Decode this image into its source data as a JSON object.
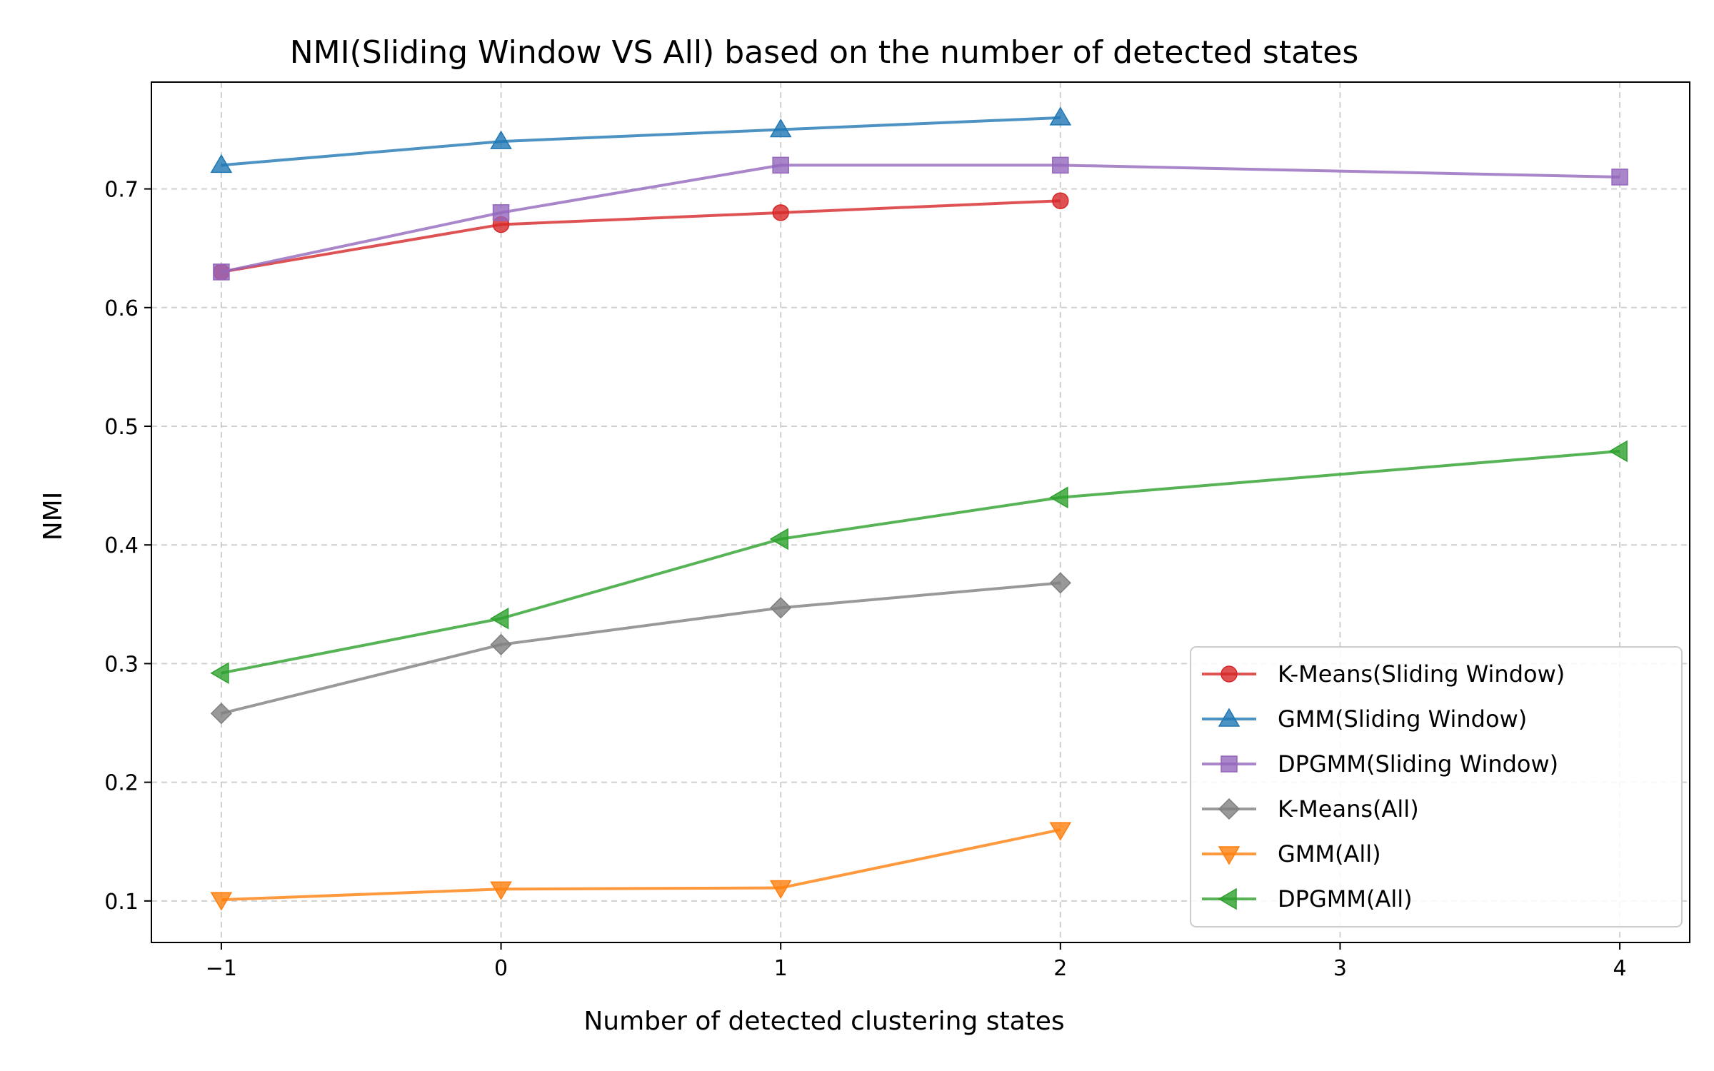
{
  "chart_data": {
    "type": "line",
    "title": "NMI(Sliding Window VS All) based on the number of detected states",
    "xlabel": "Number of detected clustering states",
    "ylabel": "NMI",
    "xlim": [
      -1.25,
      4.25
    ],
    "ylim": [
      0.065,
      0.79
    ],
    "xticks": [
      -1,
      0,
      1,
      2,
      3,
      4
    ],
    "xtick_labels": [
      "−1",
      "0",
      "1",
      "2",
      "3",
      "4"
    ],
    "yticks": [
      0.1,
      0.2,
      0.3,
      0.4,
      0.5,
      0.6,
      0.7
    ],
    "ytick_labels": [
      "0.1",
      "0.2",
      "0.3",
      "0.4",
      "0.5",
      "0.6",
      "0.7"
    ],
    "grid": true,
    "legend_position": "lower-right",
    "series": [
      {
        "name": "K-Means(Sliding Window)",
        "color": "#d62728",
        "marker": "circle",
        "x": [
          -1,
          0,
          1,
          2
        ],
        "y": [
          0.63,
          0.67,
          0.68,
          0.69
        ]
      },
      {
        "name": "GMM(Sliding Window)",
        "color": "#1f77b4",
        "marker": "triangle-up",
        "x": [
          -1,
          0,
          1,
          2
        ],
        "y": [
          0.72,
          0.74,
          0.75,
          0.76
        ]
      },
      {
        "name": "DPGMM(Sliding Window)",
        "color": "#9467bd",
        "marker": "square",
        "x": [
          -1,
          0,
          1,
          2,
          4
        ],
        "y": [
          0.63,
          0.68,
          0.72,
          0.72,
          0.71
        ]
      },
      {
        "name": "K-Means(All)",
        "color": "#7f7f7f",
        "marker": "diamond",
        "x": [
          -1,
          0,
          1,
          2
        ],
        "y": [
          0.258,
          0.316,
          0.347,
          0.368
        ]
      },
      {
        "name": "GMM(All)",
        "color": "#ff7f0e",
        "marker": "triangle-down",
        "x": [
          -1,
          0,
          1,
          2
        ],
        "y": [
          0.101,
          0.11,
          0.111,
          0.16
        ]
      },
      {
        "name": "DPGMM(All)",
        "color": "#2ca02c",
        "marker": "triangle-left",
        "x": [
          -1,
          0,
          1,
          2,
          4
        ],
        "y": [
          0.292,
          0.338,
          0.405,
          0.44,
          0.479
        ]
      }
    ]
  }
}
